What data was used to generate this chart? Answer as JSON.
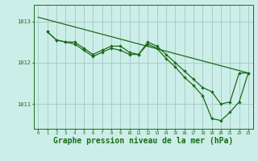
{
  "background_color": "#cceee8",
  "grid_color": "#aaccc8",
  "line_color": "#1a6b1a",
  "xlabel": "Graphe pression niveau de la mer (hPa)",
  "xlabel_fontsize": 7,
  "ylabel_ticks": [
    1011,
    1012,
    1013
  ],
  "xlim": [
    -0.5,
    23.5
  ],
  "ylim": [
    1010.4,
    1013.4
  ],
  "xticks": [
    0,
    1,
    2,
    3,
    4,
    5,
    6,
    7,
    8,
    9,
    10,
    11,
    12,
    13,
    14,
    15,
    16,
    17,
    18,
    19,
    20,
    21,
    22,
    23
  ],
  "series1_x": [
    0,
    23
  ],
  "series1_y": [
    1013.1,
    1011.75
  ],
  "series2_x": [
    1,
    2,
    3,
    4,
    5,
    6,
    7,
    8,
    9,
    10,
    11,
    12,
    13,
    14,
    15,
    16,
    17,
    18,
    19,
    20,
    21,
    22,
    23
  ],
  "series2_y": [
    1012.75,
    1012.55,
    1012.5,
    1012.5,
    1012.35,
    1012.2,
    1012.3,
    1012.4,
    1012.4,
    1012.25,
    1012.2,
    1012.5,
    1012.4,
    1012.2,
    1012.0,
    1011.8,
    1011.6,
    1011.4,
    1011.3,
    1011.0,
    1011.05,
    1011.75,
    1011.75
  ],
  "series3_x": [
    1,
    2,
    3,
    4,
    5,
    6,
    7,
    8,
    9,
    10,
    11,
    12,
    13,
    14,
    15,
    16,
    17,
    18,
    19,
    20,
    21,
    22,
    23
  ],
  "series3_y": [
    1012.75,
    1012.55,
    1012.5,
    1012.45,
    1012.3,
    1012.15,
    1012.25,
    1012.35,
    1012.3,
    1012.2,
    1012.2,
    1012.45,
    1012.35,
    1012.1,
    1011.9,
    1011.65,
    1011.45,
    1011.2,
    1010.65,
    1010.6,
    1010.8,
    1011.05,
    1011.75
  ]
}
